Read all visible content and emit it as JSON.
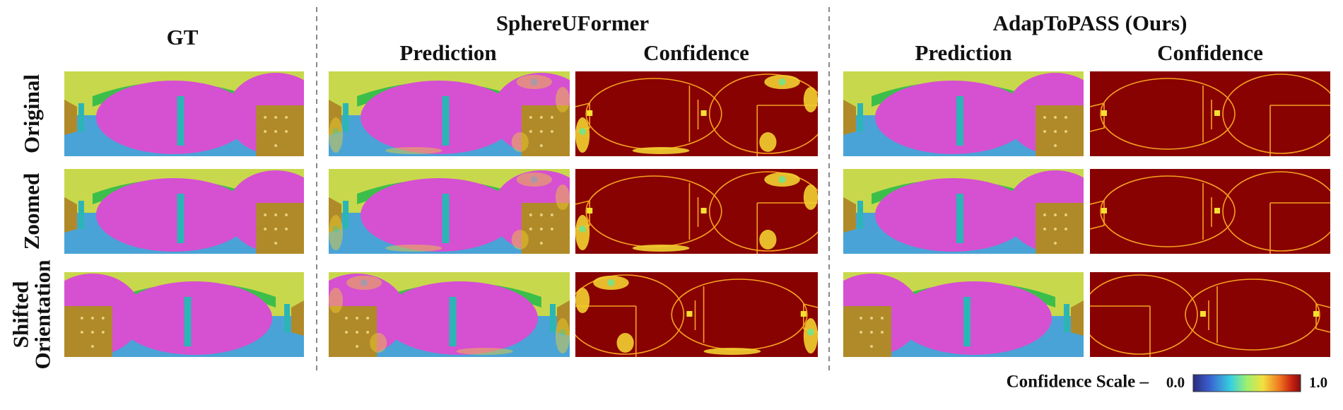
{
  "header": {
    "gt": "GT",
    "methods": [
      {
        "title": "SphereUFormer",
        "columns": [
          "Prediction",
          "Confidence"
        ]
      },
      {
        "title": "AdapToPASS (Ours)",
        "columns": [
          "Prediction",
          "Confidence"
        ]
      }
    ]
  },
  "row_labels": [
    [
      "Original"
    ],
    [
      "Zoomed"
    ],
    [
      "Shifted",
      "Orientation"
    ]
  ],
  "scale": {
    "label": "Confidence Scale –",
    "min": "0.0",
    "max": "1.0"
  }
}
